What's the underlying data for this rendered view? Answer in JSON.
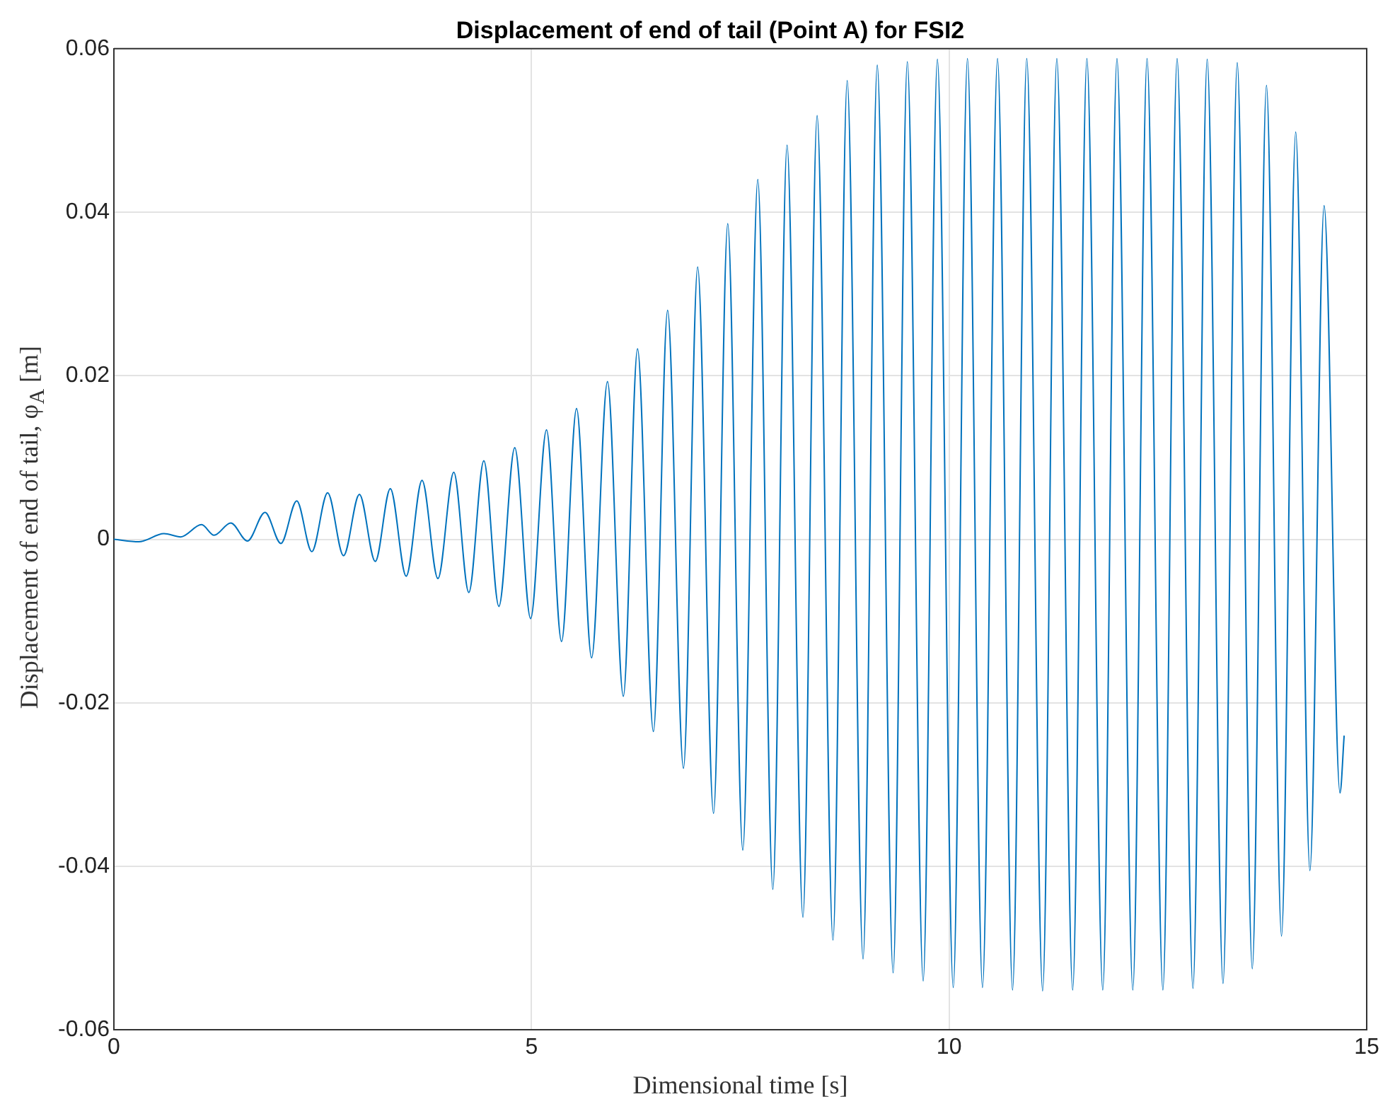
{
  "chart_data": {
    "type": "line",
    "title": "Displacement of end of tail (Point A) for FSI2",
    "xlabel": "Dimensional time [s]",
    "ylabel": "Displacement of end of tail, φ$_{A}$ [m]",
    "xlim": [
      0,
      15
    ],
    "xticks": [
      0,
      5,
      10,
      15
    ],
    "ylim": [
      -0.06,
      0.06
    ],
    "yticks": [
      -0.06,
      -0.04,
      -0.02,
      0,
      0.02,
      0.04,
      0.06
    ],
    "grid": true,
    "legend": false,
    "marker": "none",
    "line_style": "solid",
    "series": [
      {
        "color": "#0072bd",
        "x": [
          0,
          0.3,
          0.6,
          0.8,
          1.05,
          1.2,
          1.4,
          1.6,
          1.81,
          2.0,
          2.19,
          2.37,
          2.56,
          2.75,
          2.94,
          3.13,
          3.31,
          3.5,
          3.69,
          3.88,
          4.07,
          4.25,
          4.43,
          4.61,
          4.8,
          4.99,
          5.18,
          5.36,
          5.54,
          5.72,
          5.91,
          6.1,
          6.27,
          6.46,
          6.63,
          6.82,
          6.99,
          7.18,
          7.35,
          7.53,
          7.71,
          7.89,
          8.06,
          8.25,
          8.42,
          8.61,
          8.78,
          8.97,
          9.14,
          9.33,
          9.5,
          9.69,
          9.86,
          10.05,
          10.22,
          10.4,
          10.58,
          10.76,
          10.93,
          11.12,
          11.29,
          11.48,
          11.65,
          11.84,
          12.01,
          12.2,
          12.37,
          12.56,
          12.73,
          12.92,
          13.09,
          13.28,
          13.45,
          13.63,
          13.8,
          13.98,
          14.15,
          14.32,
          14.49,
          14.68,
          14.73
        ],
        "values": [
          0,
          -0.0003,
          0.0007,
          0.0003,
          0.0018,
          0.0005,
          0.002,
          -0.0002,
          0.0033,
          -0.0005,
          0.0047,
          -0.0015,
          0.0057,
          -0.002,
          0.0055,
          -0.0027,
          0.0062,
          -0.0045,
          0.0072,
          -0.0048,
          0.0082,
          -0.0065,
          0.0096,
          -0.0082,
          0.0112,
          -0.0097,
          0.0134,
          -0.0125,
          0.016,
          -0.0145,
          0.0193,
          -0.0192,
          0.0233,
          -0.0235,
          0.028,
          -0.028,
          0.0333,
          -0.0335,
          0.0386,
          -0.038,
          0.044,
          -0.0428,
          0.0482,
          -0.0462,
          0.0518,
          -0.049,
          0.0561,
          -0.0513,
          0.058,
          -0.053,
          0.0584,
          -0.054,
          0.0587,
          -0.0548,
          0.0588,
          -0.0548,
          0.0588,
          -0.0551,
          0.0588,
          -0.0552,
          0.0588,
          -0.0551,
          0.0588,
          -0.0551,
          0.0588,
          -0.0551,
          0.0588,
          -0.0551,
          0.0588,
          -0.0549,
          0.0587,
          -0.0543,
          0.0583,
          -0.0525,
          0.0555,
          -0.0485,
          0.0498,
          -0.0405,
          0.0408,
          -0.031,
          -0.024
        ]
      }
    ]
  }
}
